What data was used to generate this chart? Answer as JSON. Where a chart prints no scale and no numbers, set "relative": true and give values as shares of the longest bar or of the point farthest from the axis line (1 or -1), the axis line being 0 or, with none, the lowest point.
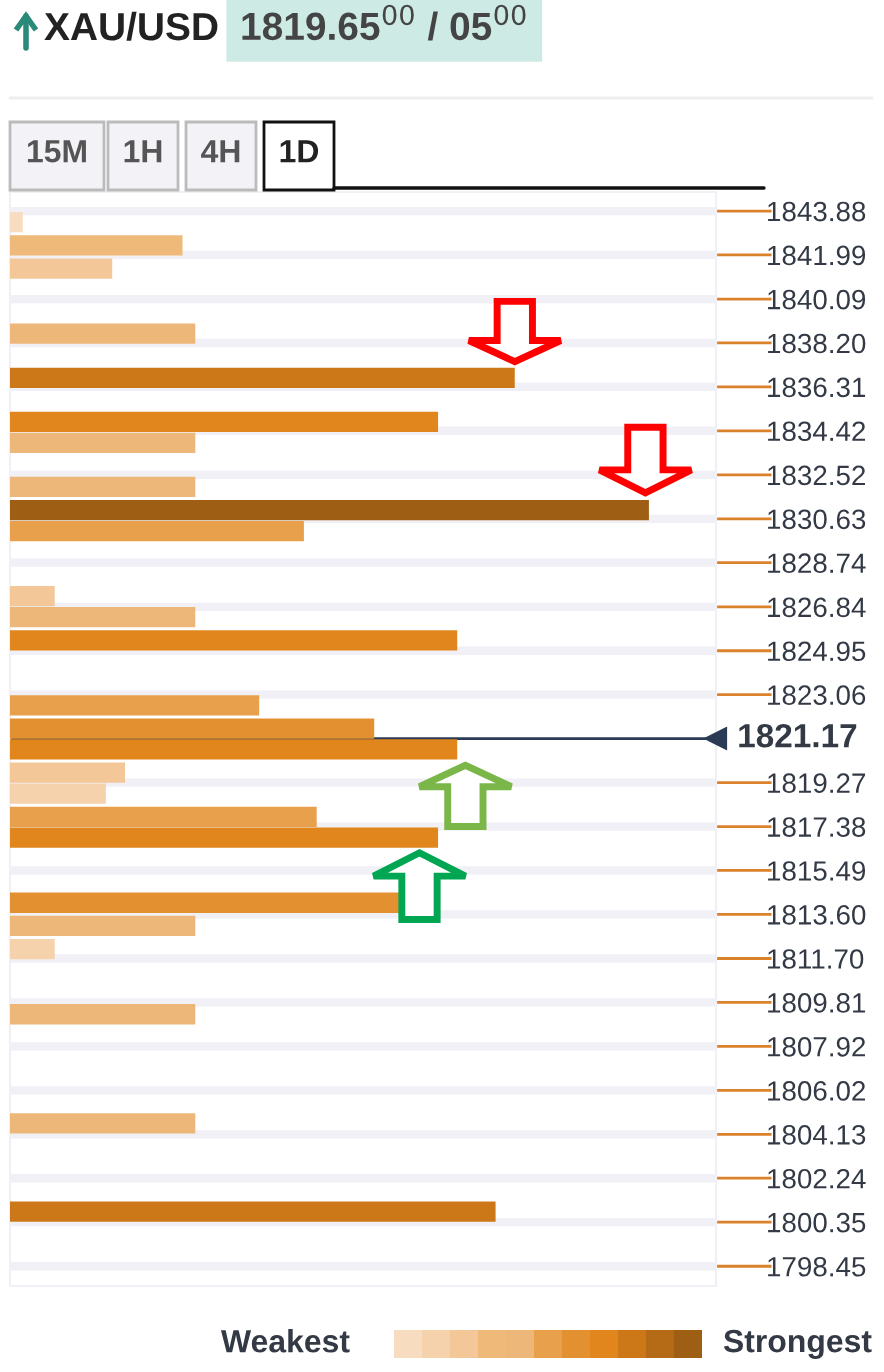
{
  "chart_data": {
    "type": "bar",
    "orientation": "horizontal",
    "relative": true,
    "title": "XAU/USD",
    "subtitle": "1819.65$^{00}$ / 05$^{00}$",
    "x": [
      1843.4,
      1842.4,
      1841.4,
      1838.6,
      1836.7,
      1834.8,
      1833.9,
      1832.0,
      1831.0,
      1830.1,
      1827.3,
      1826.4,
      1825.4,
      1822.6,
      1821.6,
      1820.7,
      1819.7,
      1818.8,
      1817.8,
      1816.9,
      1814.1,
      1813.1,
      1812.1,
      1809.3,
      1804.6,
      1800.8
    ],
    "values": [
      0.02,
      0.27,
      0.16,
      0.29,
      0.79,
      0.67,
      0.29,
      0.29,
      1,
      0.46,
      0.07,
      0.29,
      0.7,
      0.39,
      0.57,
      0.7,
      0.18,
      0.15,
      0.48,
      0.67,
      0.61,
      0.29,
      0.07,
      0.29,
      0.29,
      0.76
    ],
    "colors": [
      "#f8dcc0",
      "#efb97a",
      "#f3c797",
      "#edb779",
      "#cc7818",
      "#e0861c",
      "#edb779",
      "#edb779",
      "#9e5e14",
      "#e8a04d",
      "#f3c797",
      "#edb779",
      "#e0861c",
      "#e8a04d",
      "#e39030",
      "#e0861c",
      "#f3c797",
      "#f5d2ab",
      "#e8a04d",
      "#e0861c",
      "#e39030",
      "#edb779",
      "#f5d2ab",
      "#edb779",
      "#edb779",
      "#cc7818"
    ],
    "ylim": [
      1797.6,
      1844.7
    ],
    "yticks": [
      1843.88,
      1841.99,
      1840.09,
      {
        "value": 1838.2,
        "label": "1838.20"
      },
      1836.31,
      1834.42,
      1832.52,
      1830.63,
      1828.74,
      1826.84,
      1824.95,
      {
        "value": 1823.06,
        "label": "1823.06"
      },
      {
        "value": 1819.27,
        "label": "1819.27"
      },
      1817.38,
      1815.49,
      {
        "value": 1813.6,
        "label": "1813.60"
      },
      {
        "value": 1811.7,
        "label": "1811.70"
      },
      1809.81,
      1807.92,
      1806.02,
      1804.13,
      1802.24,
      1800.35,
      1798.45
    ],
    "ref_lines": [
      {
        "axis": "y",
        "value": 1821.17,
        "label": "1821.17",
        "color": "#2b3a55"
      }
    ],
    "grid": "y",
    "annotations": [
      "15M",
      "1H",
      "4H",
      "1D",
      "Weakest",
      "Strongest"
    ]
  }
}
